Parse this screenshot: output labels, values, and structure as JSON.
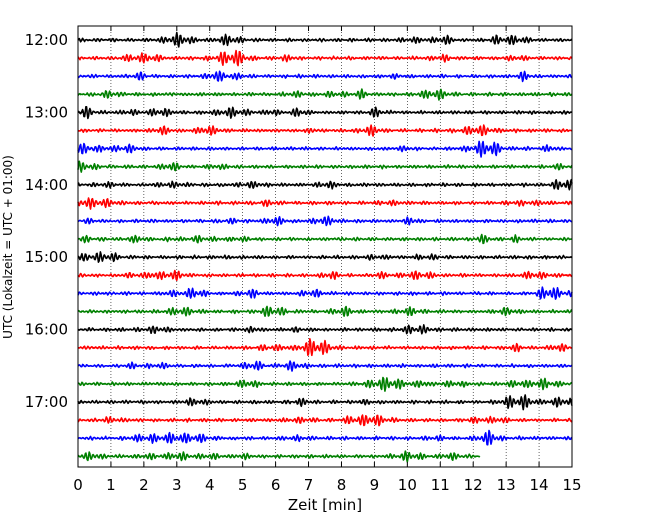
{
  "chart_data": {
    "type": "line",
    "title": "",
    "xlabel": "Zeit  [min]",
    "ylabel": "UTC (Lokalzeit = UTC + 01:00)",
    "xlim": [
      0,
      15
    ],
    "x_ticks": [
      0,
      1,
      2,
      3,
      4,
      5,
      6,
      7,
      8,
      9,
      10,
      11,
      12,
      13,
      14,
      15
    ],
    "x_tick_labels": [
      "0",
      "1",
      "2",
      "3",
      "4",
      "5",
      "6",
      "7",
      "8",
      "9",
      "10",
      "11",
      "12",
      "13",
      "14",
      "15"
    ],
    "y_tick_labels": [
      "12:00",
      "13:00",
      "14:00",
      "15:00",
      "16:00",
      "17:00"
    ],
    "grid": "vertical dotted at each minute",
    "trace_interval_min": 15,
    "trace_start_utc": "12:00",
    "trace_count": 24,
    "color_cycle": [
      "#000000",
      "#ff0000",
      "#0000ff",
      "#008000"
    ],
    "last_trace_end_min": 12.2
  }
}
